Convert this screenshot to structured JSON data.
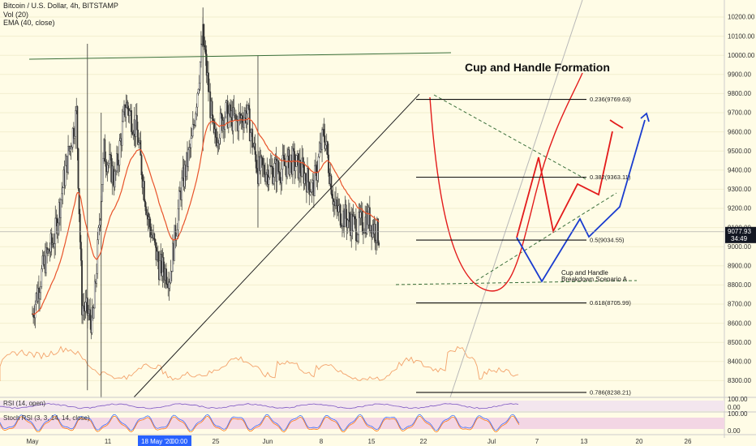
{
  "legend": {
    "symbol": "Bitcoin / U.S. Dollar, 4h, BITSTAMP",
    "vol": "Vol (20)",
    "ema": "EMA (40, close)"
  },
  "annotations": {
    "title": "Cup and Handle Formation",
    "scenario_line1": "Cup and Handle",
    "scenario_line2": "Breakdown Scenario A"
  },
  "price_axis": {
    "ticks": [
      "10200.00",
      "10100.00",
      "10000.00",
      "9900.00",
      "9800.00",
      "9700.00",
      "9600.00",
      "9500.00",
      "9400.00",
      "9300.00",
      "9200.00",
      "9100.00",
      "9000.00",
      "8900.00",
      "8800.00",
      "8700.00",
      "8600.00",
      "8500.00",
      "8400.00",
      "8300.00"
    ],
    "current_price": "9077.93",
    "countdown": "34:49"
  },
  "fib_levels": [
    {
      "label": "0.236(9769.63)",
      "value": 9769.63
    },
    {
      "label": "0.382(9363.11)",
      "value": 9363.11
    },
    {
      "label": "0.5(9034.55)",
      "value": 9034.55
    },
    {
      "label": "0.618(8705.99)",
      "value": 8705.99
    },
    {
      "label": "0.786(8238.21)",
      "value": 8238.21
    }
  ],
  "oscillators": {
    "rsi_label": "RSI (14, open)",
    "rsi_ticks": [
      "100.00",
      "0.00"
    ],
    "stoch_label": "Stoch RSI (3, 3, 14, 14, close)",
    "stoch_ticks": [
      "100.00",
      "0.00"
    ]
  },
  "time_axis": {
    "labels": [
      "May",
      "11",
      "25",
      "Jun",
      "8",
      "15",
      "22",
      "Jul",
      "7",
      "13",
      "20",
      "26"
    ],
    "highlight": "18 May '20",
    "highlight_time": "00:00"
  },
  "colors": {
    "background": "#fffce6",
    "candle": "#333333",
    "ema": "#e8532a",
    "volume": "#f3a26a",
    "projection_red": "#e31b1b",
    "projection_blue": "#1a3ccf",
    "trendline": "#222222",
    "dashed": "#3a6f3a",
    "axis_badge": "#2962ff"
  },
  "chart_data": {
    "type": "candlestick",
    "title": "Bitcoin / U.S. Dollar, 4h, BITSTAMP",
    "ylim": [
      8180,
      10260
    ],
    "x_labels": [
      "May",
      "11",
      "25",
      "Jun",
      "8",
      "15",
      "22",
      "Jul",
      "7",
      "13",
      "20",
      "26"
    ],
    "close_path": [
      [
        "May 1",
        8650
      ],
      [
        "May 3",
        8900
      ],
      [
        "May 5",
        9050
      ],
      [
        "May 7",
        9400
      ],
      [
        "May 9",
        9700
      ],
      [
        "May 10",
        8700
      ],
      [
        "May 12",
        8600
      ],
      [
        "May 14",
        9500
      ],
      [
        "May 16",
        9350
      ],
      [
        "May 18",
        9750
      ],
      [
        "May 20",
        9600
      ],
      [
        "May 22",
        9150
      ],
      [
        "May 24",
        8900
      ],
      [
        "May 26",
        8850
      ],
      [
        "May 28",
        9300
      ],
      [
        "May 30",
        9550
      ],
      [
        "Jun 1",
        10100
      ],
      [
        "Jun 3",
        9550
      ],
      [
        "Jun 5",
        9700
      ],
      [
        "Jun 7",
        9650
      ],
      [
        "Jun 9",
        9700
      ],
      [
        "Jun 11",
        9400
      ],
      [
        "Jun 13",
        9400
      ],
      [
        "Jun 15",
        9400
      ],
      [
        "Jun 17",
        9450
      ],
      [
        "Jun 19",
        9400
      ],
      [
        "Jun 21",
        9300
      ],
      [
        "Jun 23",
        9600
      ],
      [
        "Jun 25",
        9200
      ],
      [
        "Jun 27",
        9150
      ],
      [
        "Jun 29",
        9100
      ],
      [
        "Jul 1",
        9150
      ],
      [
        "Jul 3",
        9060
      ]
    ],
    "ema_period": 40,
    "current_price": 9077.93,
    "fib_levels": [
      9769.63,
      9363.11,
      9034.55,
      8705.99,
      8238.21
    ]
  }
}
